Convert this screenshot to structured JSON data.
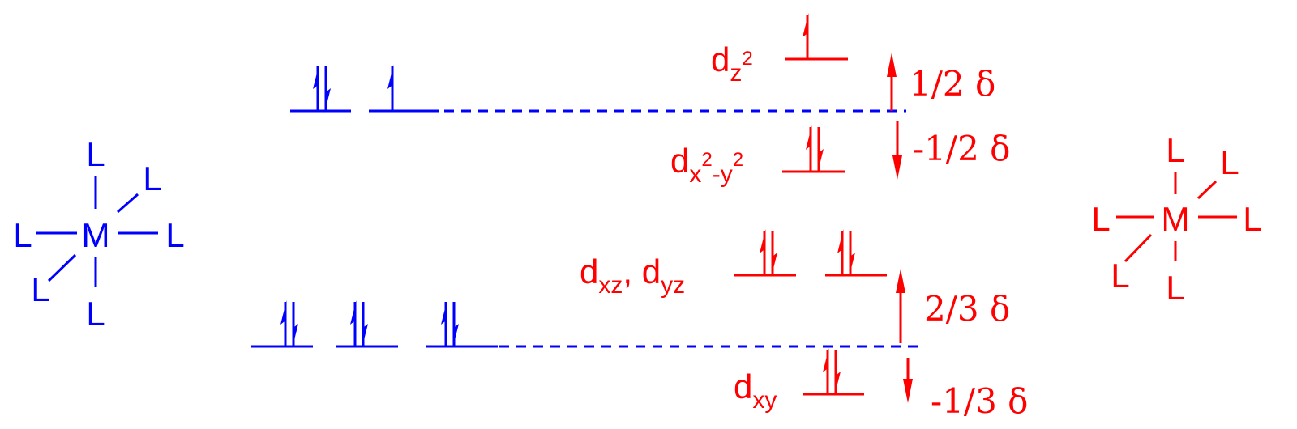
{
  "colors": {
    "octahedral": "#0000ff",
    "distorted": "#ff0000"
  },
  "octahedral_complex": {
    "metal": "M",
    "ligand": "L"
  },
  "distorted_complex": {
    "metal": "M",
    "ligand": "L"
  },
  "octahedral_levels": {
    "eg_electrons": [
      2,
      1
    ],
    "t2g_electrons": [
      2,
      2,
      2
    ]
  },
  "distorted_levels": {
    "dz2": {
      "d": "d",
      "sub": "z",
      "sup": "2",
      "electrons": 1
    },
    "dx2y2": {
      "d": "d",
      "sub1": "x",
      "sup1": "2",
      "sub2": "-y",
      "sup2": "2",
      "electrons": 2
    },
    "dxz_dyz": {
      "d1": "d",
      "sub1": "xz",
      "sep": ", ",
      "d2": "d",
      "sub2": "yz",
      "electrons": [
        2,
        2
      ]
    },
    "dxy": {
      "d": "d",
      "sub": "xy",
      "electrons": 2
    }
  },
  "splitting": {
    "dz2": "1/2 δ",
    "dx2y2": "-1/2 δ",
    "dxz_dyz": "2/3 δ",
    "dxy": "-1/3 δ"
  }
}
